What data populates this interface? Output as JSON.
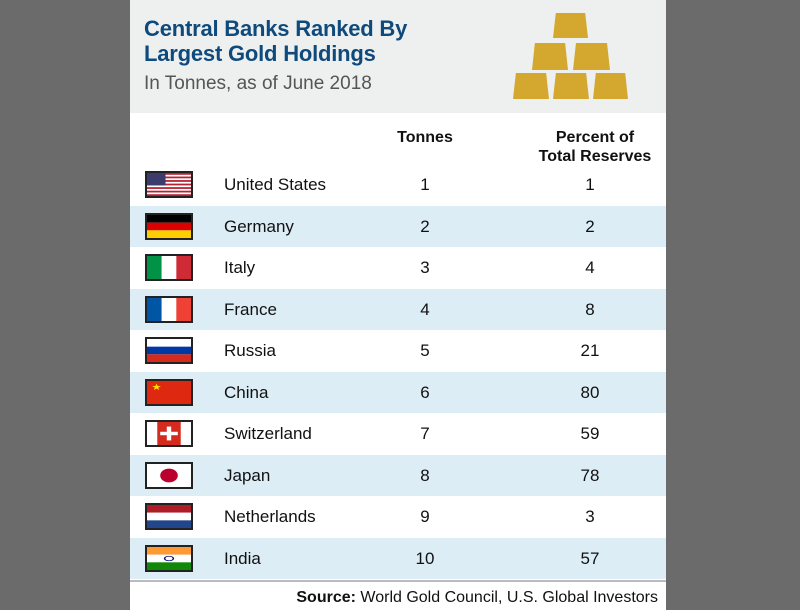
{
  "header": {
    "title_line1": "Central Banks Ranked By",
    "title_line2": "Largest Gold Holdings",
    "subtitle": "In Tonnes, as of June 2018",
    "icon": "gold-bars-icon"
  },
  "columns": {
    "tonnes": "Tonnes",
    "percent_line1": "Percent of",
    "percent_line2": "Total Reserves"
  },
  "rows": [
    {
      "country": "United States",
      "tonnes": "1",
      "percent": "1"
    },
    {
      "country": "Germany",
      "tonnes": "2",
      "percent": "2"
    },
    {
      "country": "Italy",
      "tonnes": "3",
      "percent": "4"
    },
    {
      "country": "France",
      "tonnes": "4",
      "percent": "8"
    },
    {
      "country": "Russia",
      "tonnes": "5",
      "percent": "21"
    },
    {
      "country": "China",
      "tonnes": "6",
      "percent": "80"
    },
    {
      "country": "Switzerland",
      "tonnes": "7",
      "percent": "59"
    },
    {
      "country": "Japan",
      "tonnes": "8",
      "percent": "78"
    },
    {
      "country": "Netherlands",
      "tonnes": "9",
      "percent": "3"
    },
    {
      "country": "India",
      "tonnes": "10",
      "percent": "57"
    }
  ],
  "source": {
    "label": "Source:",
    "text": " World Gold Council, U.S. Global Investors"
  },
  "colors": {
    "title": "#0f4a7c",
    "gold": "#d4a82e",
    "row_alt": "#dcedf5"
  }
}
